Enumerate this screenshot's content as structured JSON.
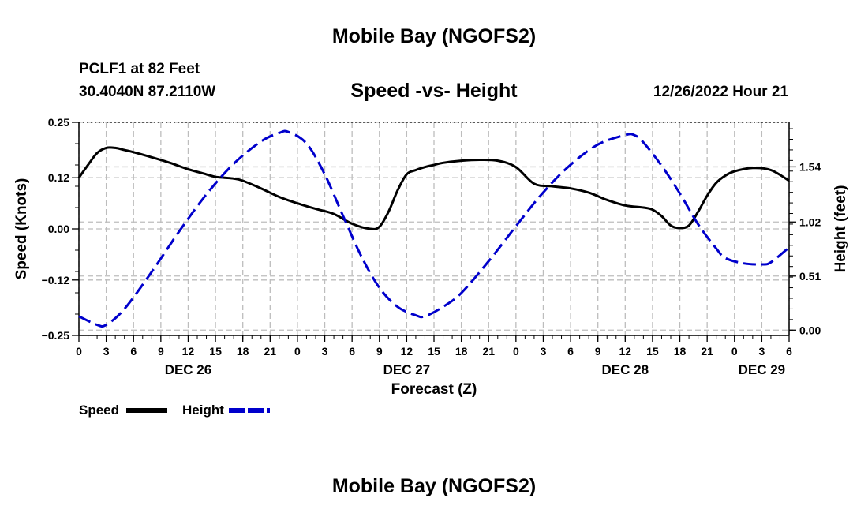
{
  "page_title": "Mobile Bay (NGOFS2)",
  "footer_title": "Mobile Bay (NGOFS2)",
  "station": {
    "line1": "PCLF1 at 82 Feet",
    "line2": "30.4040N  87.2110W"
  },
  "timestamp": "12/26/2022 Hour 21",
  "chart_data": {
    "type": "line",
    "title": "Speed -vs- Height",
    "xlabel": "Forecast (Z)",
    "ylabel_left": "Speed (Knots)",
    "ylabel_right": "Height (feet)",
    "x_range_hours": [
      0,
      78
    ],
    "x_tick_step_hours": 3,
    "x_tick_labels": [
      "0",
      "3",
      "6",
      "9",
      "12",
      "15",
      "18",
      "21",
      "0",
      "3",
      "6",
      "9",
      "12",
      "15",
      "18",
      "21",
      "0",
      "3",
      "6",
      "9",
      "12",
      "15",
      "18",
      "21",
      "0",
      "3",
      "6"
    ],
    "date_labels": [
      {
        "text": "DEC 26",
        "hour": 12
      },
      {
        "text": "DEC 27",
        "hour": 36
      },
      {
        "text": "DEC 28",
        "hour": 60
      },
      {
        "text": "DEC 29",
        "hour": 75
      }
    ],
    "speed_axis": {
      "min": -0.25,
      "max": 0.25,
      "ticks": [
        -0.25,
        -0.12,
        0.0,
        0.12,
        0.25
      ],
      "tick_labels": [
        "−0.25",
        "−0.12",
        "0.00",
        "0.12",
        "0.25"
      ]
    },
    "height_axis": {
      "min": -0.05,
      "max": 1.96,
      "ticks": [
        0.0,
        0.51,
        1.02,
        1.54
      ],
      "tick_labels": [
        "0.00",
        "0.51",
        "1.02",
        "1.54"
      ]
    },
    "grid": true,
    "legend_position": "bottom-left",
    "series": [
      {
        "name": "Speed",
        "axis": "left",
        "color": "#000000",
        "style": "solid",
        "x": [
          0,
          1,
          2,
          3,
          4,
          5,
          6,
          8,
          10,
          12,
          14,
          15,
          16,
          17,
          18,
          20,
          22,
          24,
          26,
          28,
          30,
          32,
          33,
          34,
          35,
          36,
          37,
          38,
          39,
          40,
          42,
          44,
          46,
          48,
          50,
          52,
          54,
          56,
          58,
          60,
          62,
          63,
          64,
          65,
          66,
          67,
          68,
          69,
          70,
          71,
          72,
          74,
          76,
          78
        ],
        "y": [
          0.12,
          0.15,
          0.178,
          0.19,
          0.19,
          0.185,
          0.18,
          0.168,
          0.155,
          0.14,
          0.128,
          0.122,
          0.12,
          0.118,
          0.113,
          0.095,
          0.075,
          0.06,
          0.047,
          0.035,
          0.012,
          0.0,
          0.005,
          0.04,
          0.09,
          0.128,
          0.138,
          0.145,
          0.15,
          0.155,
          0.16,
          0.162,
          0.16,
          0.145,
          0.106,
          0.1,
          0.095,
          0.085,
          0.068,
          0.055,
          0.05,
          0.045,
          0.03,
          0.008,
          0.002,
          0.008,
          0.04,
          0.078,
          0.108,
          0.125,
          0.135,
          0.143,
          0.138,
          0.113
        ]
      },
      {
        "name": "Height",
        "axis": "right",
        "color": "#0000cc",
        "style": "dashed",
        "x": [
          0,
          2,
          3,
          5,
          8,
          11,
          14,
          17,
          20,
          22,
          23,
          25,
          27,
          29,
          31,
          33,
          35,
          37,
          38,
          40,
          42,
          45,
          48,
          51,
          54,
          57,
          60,
          61,
          62,
          64,
          66,
          68,
          70,
          71,
          73,
          75,
          76,
          78
        ],
        "y": [
          0.13,
          0.05,
          0.05,
          0.2,
          0.55,
          0.93,
          1.28,
          1.57,
          1.78,
          1.86,
          1.87,
          1.76,
          1.47,
          1.08,
          0.7,
          0.4,
          0.22,
          0.14,
          0.13,
          0.22,
          0.35,
          0.65,
          0.98,
          1.3,
          1.56,
          1.75,
          1.84,
          1.84,
          1.77,
          1.55,
          1.29,
          1.0,
          0.77,
          0.68,
          0.63,
          0.62,
          0.64,
          0.78
        ]
      }
    ]
  }
}
